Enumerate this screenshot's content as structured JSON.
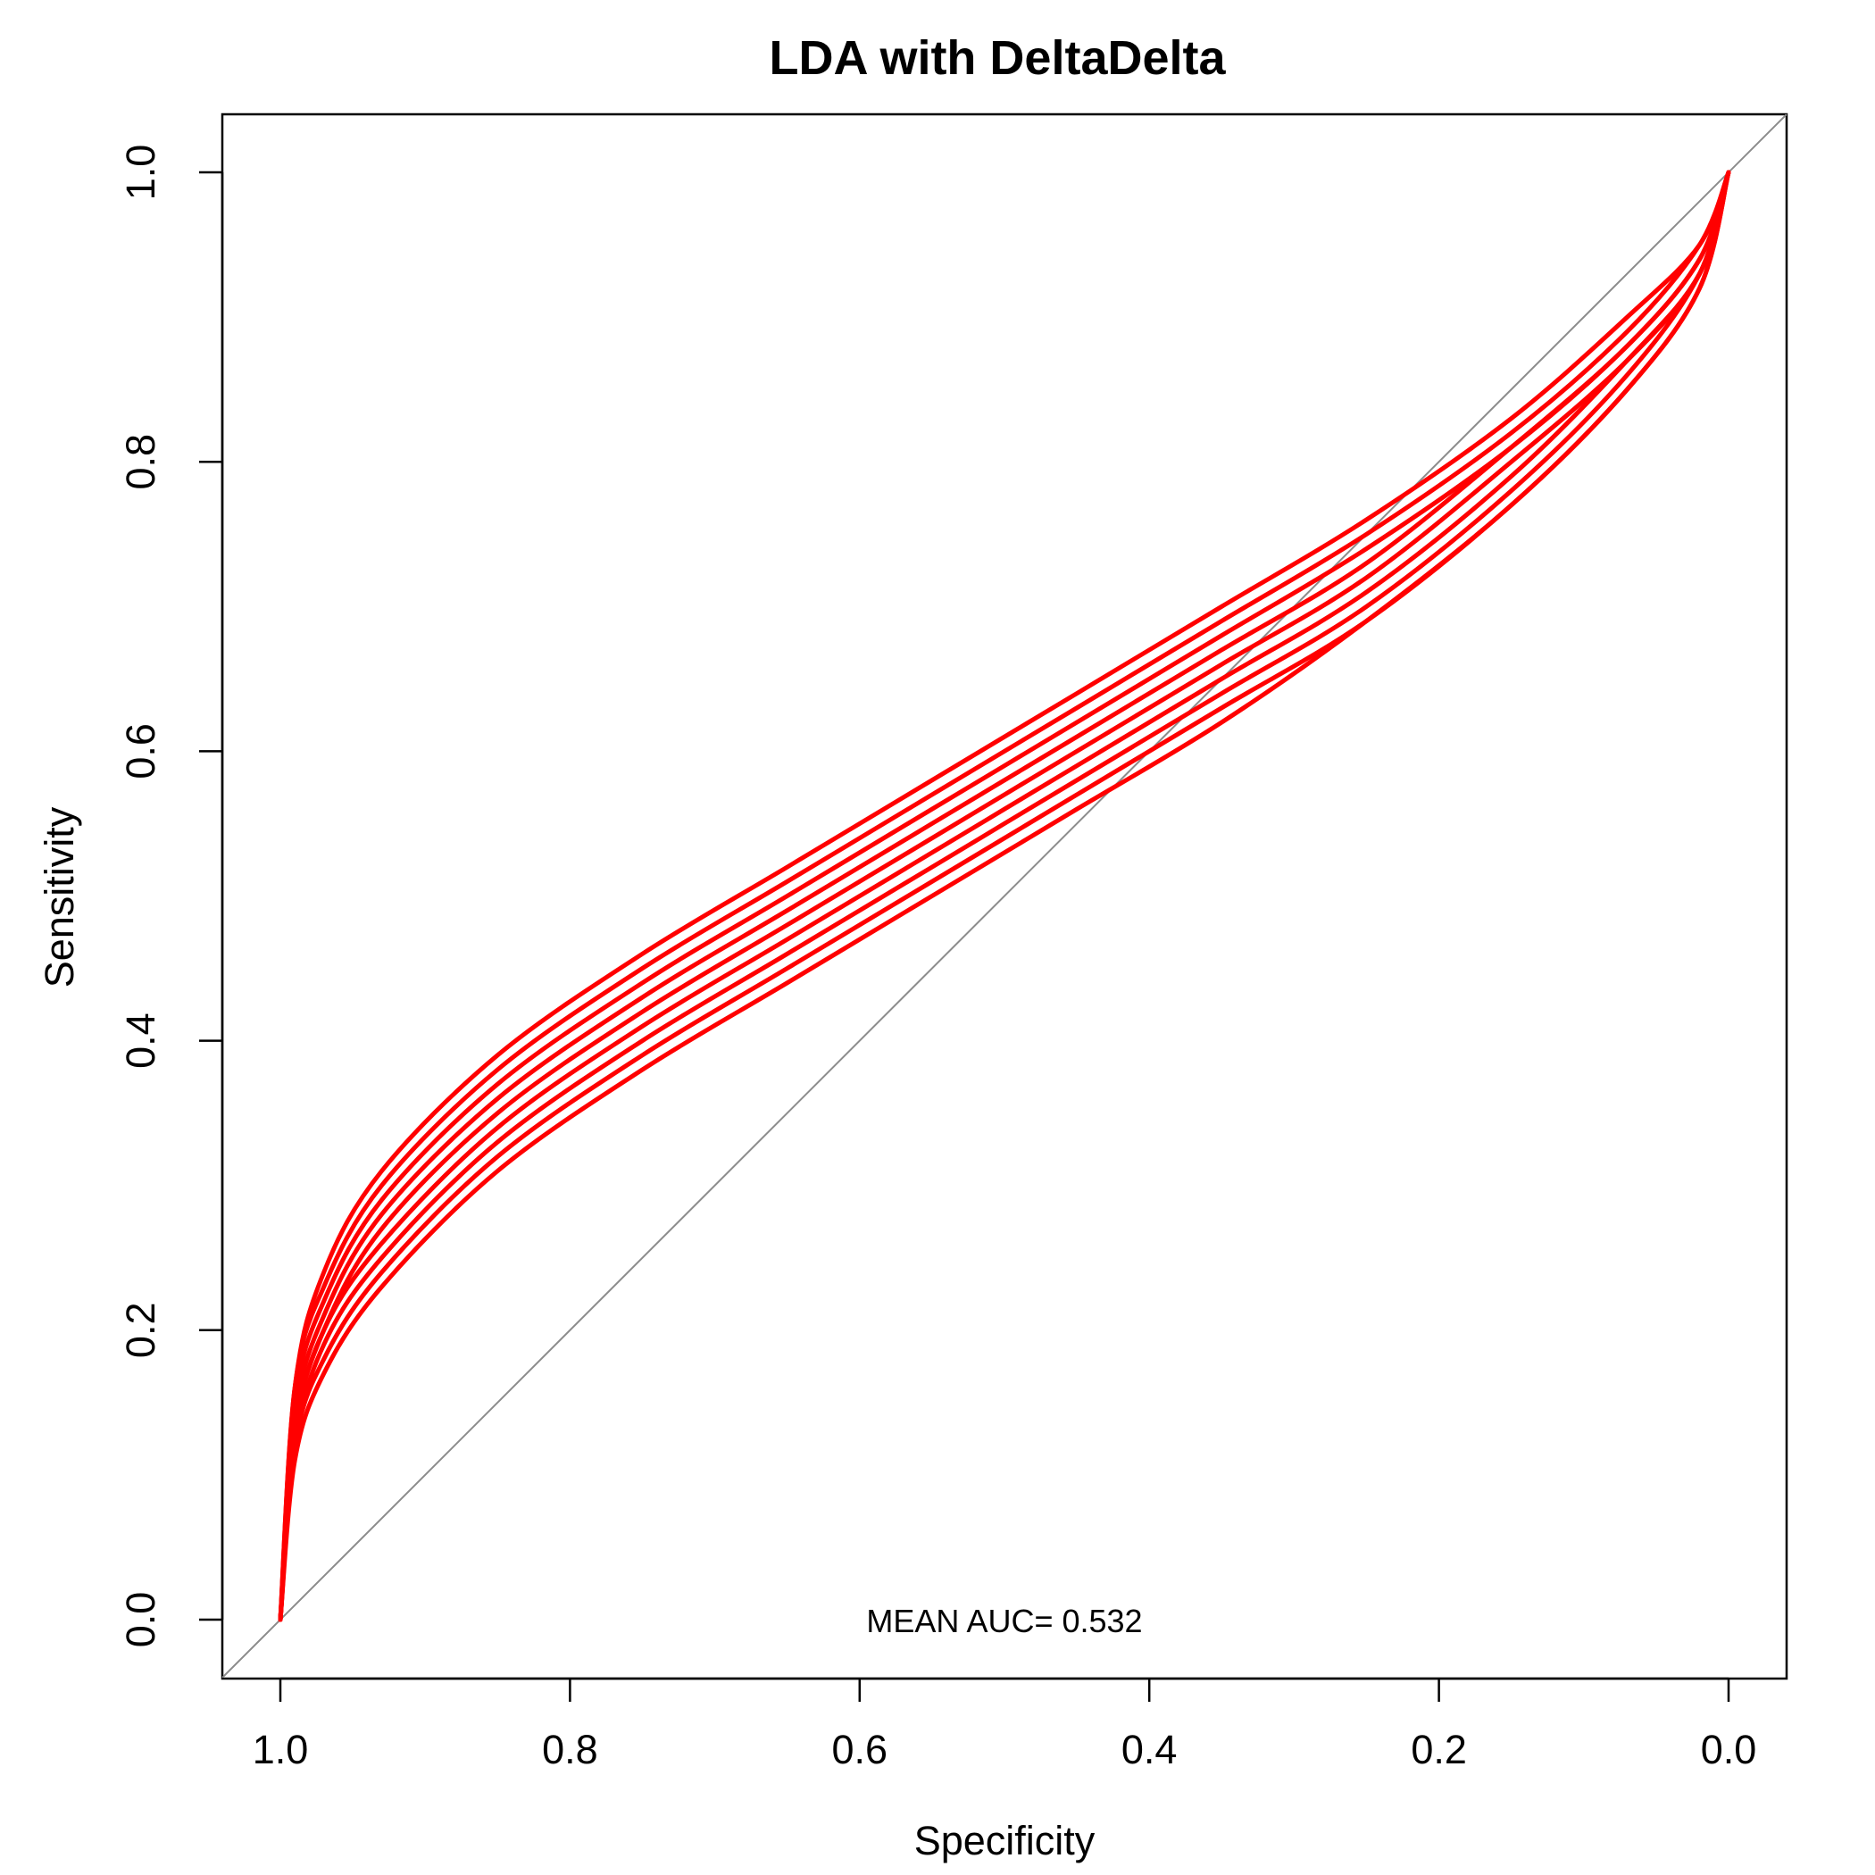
{
  "chart_data": {
    "type": "line",
    "title": "LDA with DeltaDelta",
    "xlabel": "Specificity",
    "ylabel": "Sensitivity",
    "x_reversed": true,
    "xlim": [
      1.0,
      0.0
    ],
    "ylim": [
      0.0,
      1.0
    ],
    "x_ticks": [
      "1.0",
      "0.8",
      "0.6",
      "0.4",
      "0.2",
      "0.0"
    ],
    "y_ticks": [
      "0.0",
      "0.2",
      "0.4",
      "0.6",
      "0.8",
      "1.0"
    ],
    "grid": false,
    "annotation": "MEAN AUC= 0.532",
    "reference_line": {
      "from": [
        1.0,
        0.0
      ],
      "to": [
        0.0,
        1.0
      ],
      "color": "#8c8c8c"
    },
    "series_color": "#ff0000",
    "series": [
      {
        "x": [
          1.0,
          0.99,
          0.97,
          0.93,
          0.85,
          0.75,
          0.65,
          0.55,
          0.5,
          0.45,
          0.35,
          0.25,
          0.15,
          0.07,
          0.02,
          0.0
        ],
        "y": [
          0.0,
          0.11,
          0.17,
          0.23,
          0.31,
          0.38,
          0.44,
          0.5,
          0.53,
          0.56,
          0.62,
          0.69,
          0.77,
          0.85,
          0.92,
          1.0
        ]
      },
      {
        "x": [
          1.0,
          0.99,
          0.97,
          0.93,
          0.85,
          0.75,
          0.65,
          0.55,
          0.5,
          0.45,
          0.35,
          0.25,
          0.15,
          0.07,
          0.02,
          0.0
        ],
        "y": [
          0.0,
          0.12,
          0.18,
          0.24,
          0.32,
          0.39,
          0.45,
          0.51,
          0.54,
          0.57,
          0.63,
          0.69,
          0.77,
          0.85,
          0.92,
          1.0
        ]
      },
      {
        "x": [
          1.0,
          0.99,
          0.97,
          0.93,
          0.85,
          0.75,
          0.65,
          0.55,
          0.5,
          0.45,
          0.35,
          0.25,
          0.15,
          0.07,
          0.02,
          0.0
        ],
        "y": [
          0.0,
          0.12,
          0.19,
          0.25,
          0.33,
          0.4,
          0.46,
          0.52,
          0.55,
          0.58,
          0.64,
          0.7,
          0.78,
          0.86,
          0.93,
          1.0
        ]
      },
      {
        "x": [
          1.0,
          0.99,
          0.97,
          0.93,
          0.85,
          0.75,
          0.65,
          0.55,
          0.5,
          0.45,
          0.35,
          0.25,
          0.15,
          0.07,
          0.02,
          0.0
        ],
        "y": [
          0.0,
          0.13,
          0.2,
          0.26,
          0.34,
          0.41,
          0.47,
          0.53,
          0.56,
          0.59,
          0.65,
          0.71,
          0.79,
          0.87,
          0.93,
          1.0
        ]
      },
      {
        "x": [
          1.0,
          0.99,
          0.97,
          0.93,
          0.85,
          0.75,
          0.65,
          0.55,
          0.5,
          0.45,
          0.35,
          0.25,
          0.15,
          0.07,
          0.02,
          0.0
        ],
        "y": [
          0.0,
          0.13,
          0.2,
          0.27,
          0.35,
          0.42,
          0.48,
          0.54,
          0.57,
          0.6,
          0.66,
          0.72,
          0.8,
          0.87,
          0.93,
          1.0
        ]
      },
      {
        "x": [
          1.0,
          0.99,
          0.97,
          0.93,
          0.85,
          0.75,
          0.65,
          0.55,
          0.5,
          0.45,
          0.35,
          0.25,
          0.15,
          0.07,
          0.02,
          0.0
        ],
        "y": [
          0.0,
          0.14,
          0.21,
          0.28,
          0.36,
          0.43,
          0.49,
          0.55,
          0.58,
          0.61,
          0.67,
          0.73,
          0.81,
          0.88,
          0.94,
          1.0
        ]
      },
      {
        "x": [
          1.0,
          0.99,
          0.97,
          0.93,
          0.85,
          0.75,
          0.65,
          0.55,
          0.5,
          0.45,
          0.35,
          0.25,
          0.15,
          0.07,
          0.02,
          0.0
        ],
        "y": [
          0.0,
          0.15,
          0.22,
          0.29,
          0.37,
          0.44,
          0.5,
          0.56,
          0.59,
          0.62,
          0.68,
          0.74,
          0.81,
          0.88,
          0.94,
          1.0
        ]
      },
      {
        "x": [
          1.0,
          0.99,
          0.97,
          0.93,
          0.85,
          0.75,
          0.65,
          0.55,
          0.5,
          0.45,
          0.35,
          0.25,
          0.15,
          0.07,
          0.02,
          0.0
        ],
        "y": [
          0.0,
          0.16,
          0.23,
          0.3,
          0.38,
          0.45,
          0.51,
          0.57,
          0.6,
          0.63,
          0.69,
          0.75,
          0.82,
          0.89,
          0.95,
          1.0
        ]
      },
      {
        "x": [
          1.0,
          0.99,
          0.97,
          0.93,
          0.85,
          0.75,
          0.65,
          0.55,
          0.5,
          0.45,
          0.35,
          0.25,
          0.15,
          0.07,
          0.02,
          0.0
        ],
        "y": [
          0.0,
          0.16,
          0.24,
          0.31,
          0.39,
          0.46,
          0.52,
          0.58,
          0.61,
          0.64,
          0.7,
          0.76,
          0.83,
          0.9,
          0.95,
          1.0
        ]
      }
    ]
  }
}
